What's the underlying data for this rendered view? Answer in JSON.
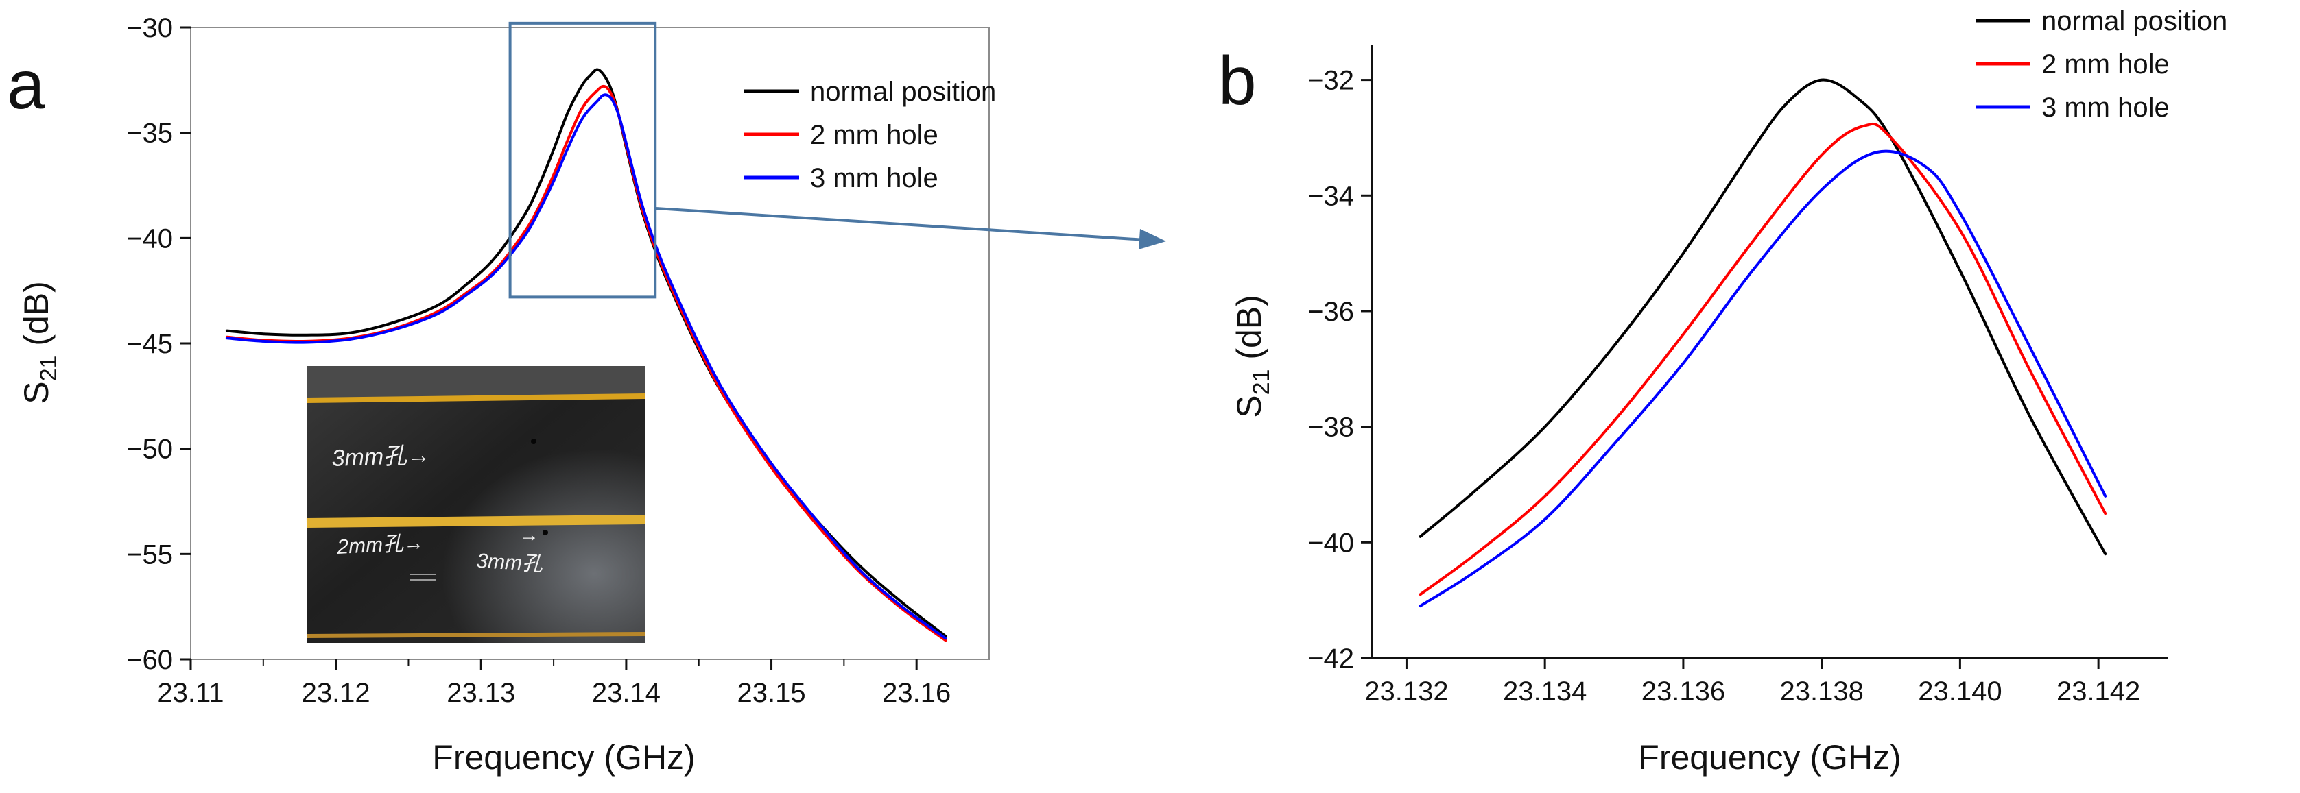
{
  "chart_data": [
    {
      "type": "line",
      "panel_label": "a",
      "xlabel": "Frequency (GHz)",
      "ylabel_main": "S",
      "ylabel_sub": "21",
      "ylabel_unit": " (dB)",
      "xlim": [
        23.11,
        23.165
      ],
      "ylim": [
        -60,
        -30
      ],
      "xticks": [
        23.11,
        23.12,
        23.13,
        23.14,
        23.15,
        23.16
      ],
      "xtick_labels": [
        "23.11",
        "23.12",
        "23.13",
        "23.14",
        "23.15",
        "23.16"
      ],
      "yticks": [
        -30,
        -35,
        -40,
        -45,
        -50,
        -55,
        -60
      ],
      "ytick_labels": [
        "−30",
        "−35",
        "−40",
        "−45",
        "−50",
        "−55",
        "−60"
      ],
      "legend_position": "top-right",
      "grid": false,
      "series": [
        {
          "name": "normal position",
          "color": "#000000",
          "x": [
            23.1125,
            23.115,
            23.118,
            23.121,
            23.124,
            23.127,
            23.129,
            23.131,
            23.133,
            23.134,
            23.135,
            23.136,
            23.137,
            23.1375,
            23.138,
            23.1385,
            23.139,
            23.1395,
            23.14,
            23.141,
            23.142,
            23.143,
            23.145,
            23.147,
            23.15,
            23.153,
            23.156,
            23.159,
            23.162
          ],
          "y": [
            -44.4,
            -44.55,
            -44.6,
            -44.5,
            -44.0,
            -43.2,
            -42.2,
            -40.9,
            -38.9,
            -37.5,
            -35.8,
            -34.0,
            -32.7,
            -32.3,
            -32.0,
            -32.3,
            -33.0,
            -34.2,
            -35.7,
            -38.5,
            -40.6,
            -42.3,
            -45.3,
            -47.8,
            -50.8,
            -53.3,
            -55.5,
            -57.3,
            -58.9
          ]
        },
        {
          "name": "2 mm hole",
          "color": "#ff0000",
          "x": [
            23.1125,
            23.115,
            23.118,
            23.121,
            23.124,
            23.127,
            23.129,
            23.131,
            23.133,
            23.134,
            23.135,
            23.136,
            23.137,
            23.138,
            23.1385,
            23.139,
            23.1395,
            23.14,
            23.141,
            23.142,
            23.143,
            23.145,
            23.147,
            23.15,
            23.153,
            23.156,
            23.159,
            23.162
          ],
          "y": [
            -44.7,
            -44.85,
            -44.9,
            -44.75,
            -44.3,
            -43.5,
            -42.6,
            -41.5,
            -39.7,
            -38.5,
            -37.0,
            -35.3,
            -33.8,
            -33.0,
            -32.8,
            -33.2,
            -34.2,
            -35.6,
            -38.4,
            -40.5,
            -42.2,
            -45.2,
            -47.8,
            -50.9,
            -53.5,
            -55.8,
            -57.6,
            -59.1
          ]
        },
        {
          "name": "3 mm hole",
          "color": "#0000ff",
          "x": [
            23.1125,
            23.115,
            23.118,
            23.121,
            23.124,
            23.127,
            23.129,
            23.131,
            23.133,
            23.134,
            23.135,
            23.136,
            23.137,
            23.138,
            23.1385,
            23.139,
            23.1395,
            23.14,
            23.141,
            23.142,
            23.143,
            23.145,
            23.147,
            23.15,
            23.153,
            23.156,
            23.159,
            23.162
          ],
          "y": [
            -44.75,
            -44.9,
            -44.95,
            -44.8,
            -44.35,
            -43.6,
            -42.7,
            -41.6,
            -39.9,
            -38.7,
            -37.3,
            -35.7,
            -34.3,
            -33.5,
            -33.2,
            -33.4,
            -34.2,
            -35.5,
            -38.2,
            -40.3,
            -42.0,
            -45.0,
            -47.6,
            -50.7,
            -53.3,
            -55.7,
            -57.5,
            -59.0
          ]
        }
      ],
      "zoom_box": {
        "x": [
          23.132,
          23.142
        ],
        "y": [
          -42.8,
          -29.8
        ]
      },
      "inset_photo_annotations": [
        "3mm孔→",
        "2mm孔→",
        "→",
        "3mm孔"
      ]
    },
    {
      "type": "line",
      "panel_label": "b",
      "xlabel": "Frequency (GHz)",
      "ylabel_main": "S",
      "ylabel_sub": "21",
      "ylabel_unit": " (dB)",
      "xlim": [
        23.1315,
        23.143
      ],
      "ylim": [
        -42,
        -31.4
      ],
      "xticks": [
        23.132,
        23.134,
        23.136,
        23.138,
        23.14,
        23.142
      ],
      "xtick_labels": [
        "23.132",
        "23.134",
        "23.136",
        "23.138",
        "23.140",
        "23.142"
      ],
      "yticks": [
        -32,
        -34,
        -36,
        -38,
        -40,
        -42
      ],
      "ytick_labels": [
        "−32",
        "−34",
        "−36",
        "−38",
        "−40",
        "−42"
      ],
      "legend_position": "top-right",
      "grid": false,
      "series": [
        {
          "name": "normal position",
          "color": "#000000",
          "x": [
            23.1322,
            23.133,
            23.134,
            23.135,
            23.136,
            23.137,
            23.1375,
            23.138,
            23.1385,
            23.139,
            23.14,
            23.141,
            23.1421
          ],
          "y": [
            -39.9,
            -39.1,
            -38.0,
            -36.6,
            -35.0,
            -33.2,
            -32.4,
            -32.0,
            -32.3,
            -33.0,
            -35.3,
            -37.8,
            -40.2
          ]
        },
        {
          "name": "2 mm hole",
          "color": "#ff0000",
          "x": [
            23.1322,
            23.133,
            23.134,
            23.135,
            23.136,
            23.137,
            23.138,
            23.1386,
            23.139,
            23.14,
            23.141,
            23.1421
          ],
          "y": [
            -40.9,
            -40.2,
            -39.2,
            -37.9,
            -36.4,
            -34.8,
            -33.3,
            -32.8,
            -33.0,
            -34.6,
            -37.0,
            -39.5
          ]
        },
        {
          "name": "3 mm hole",
          "color": "#0000ff",
          "x": [
            23.1322,
            23.133,
            23.134,
            23.135,
            23.136,
            23.137,
            23.138,
            23.1388,
            23.1395,
            23.14,
            23.141,
            23.1421
          ],
          "y": [
            -41.1,
            -40.5,
            -39.6,
            -38.3,
            -36.9,
            -35.3,
            -33.9,
            -33.25,
            -33.5,
            -34.3,
            -36.6,
            -39.2
          ]
        }
      ]
    }
  ]
}
